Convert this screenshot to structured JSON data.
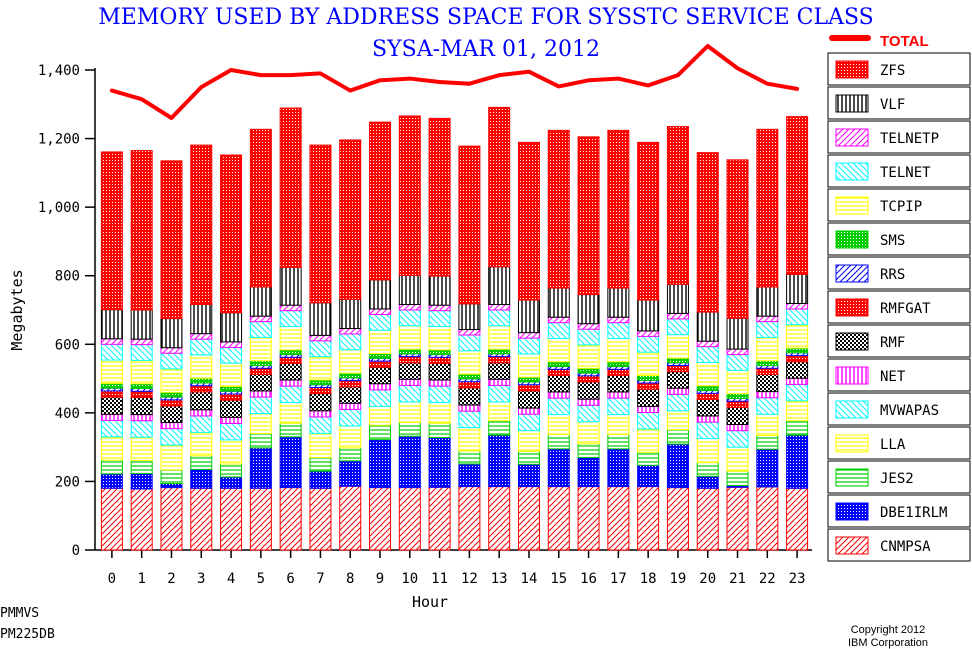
{
  "chart_data": {
    "type": "bar",
    "stacked": true,
    "title": "MEMORY USED BY ADDRESS SPACE FOR SYSSTC SERVICE CLASS",
    "subtitle": "SYSA-MAR 01, 2012",
    "xlabel": "Hour",
    "ylabel": "Megabytes",
    "ylim": [
      0,
      1400
    ],
    "yticks": [
      0,
      200,
      400,
      600,
      800,
      1000,
      1200,
      1400
    ],
    "ytick_labels": [
      "0",
      "200",
      "400",
      "600",
      "800",
      "1,000",
      "1,200",
      "1,400"
    ],
    "categories": [
      "0",
      "1",
      "2",
      "3",
      "4",
      "5",
      "6",
      "7",
      "8",
      "9",
      "10",
      "11",
      "12",
      "13",
      "14",
      "15",
      "16",
      "17",
      "18",
      "19",
      "20",
      "21",
      "22",
      "23"
    ],
    "legend_position": "right",
    "series": [
      {
        "name": "CNMPSA",
        "color": "#ff0000",
        "pattern": "diag-fwd",
        "values": [
          180,
          178,
          182,
          180,
          180,
          180,
          182,
          180,
          186,
          182,
          182,
          183,
          185,
          185,
          185,
          185,
          185,
          185,
          185,
          182,
          180,
          183,
          184,
          180
        ]
      },
      {
        "name": "DBE1IRLM",
        "color": "#0000ff",
        "pattern": "dots",
        "values": [
          42,
          45,
          12,
          55,
          33,
          118,
          148,
          50,
          74,
          140,
          150,
          145,
          66,
          150,
          65,
          110,
          85,
          110,
          62,
          127,
          35,
          5,
          110,
          155
        ]
      },
      {
        "name": "JES2",
        "color": "#00cc00",
        "pattern": "horiz",
        "values": [
          40,
          38,
          40,
          40,
          38,
          42,
          40,
          40,
          38,
          42,
          40,
          42,
          38,
          42,
          38,
          42,
          40,
          42,
          38,
          42,
          40,
          42,
          40,
          42
        ]
      },
      {
        "name": "LLA",
        "color": "#ffff00",
        "pattern": "horiz",
        "values": [
          68,
          68,
          72,
          68,
          70,
          58,
          60,
          70,
          64,
          55,
          60,
          60,
          68,
          55,
          60,
          58,
          64,
          58,
          68,
          55,
          70,
          70,
          62,
          58
        ]
      },
      {
        "name": "MVWAPAS",
        "color": "#00ffff",
        "pattern": "diag-back",
        "values": [
          48,
          48,
          48,
          48,
          48,
          48,
          48,
          48,
          48,
          48,
          48,
          48,
          48,
          48,
          48,
          48,
          48,
          48,
          48,
          48,
          48,
          48,
          48,
          48
        ]
      },
      {
        "name": "NET",
        "color": "#ff00ff",
        "pattern": "vert",
        "values": [
          18,
          18,
          18,
          18,
          18,
          18,
          18,
          18,
          18,
          18,
          18,
          18,
          18,
          18,
          18,
          18,
          18,
          18,
          18,
          18,
          18,
          18,
          18,
          18
        ]
      },
      {
        "name": "RMF",
        "color": "#000000",
        "pattern": "checker",
        "values": [
          50,
          50,
          48,
          52,
          50,
          48,
          48,
          50,
          48,
          48,
          48,
          48,
          50,
          48,
          50,
          48,
          50,
          48,
          50,
          48,
          48,
          50,
          50,
          48
        ]
      },
      {
        "name": "RMFGAT",
        "color": "#ff0000",
        "pattern": "dots",
        "values": [
          18,
          18,
          18,
          18,
          18,
          18,
          18,
          18,
          18,
          18,
          18,
          18,
          18,
          18,
          18,
          18,
          18,
          18,
          18,
          18,
          18,
          18,
          18,
          18
        ]
      },
      {
        "name": "RRS",
        "color": "#0000ff",
        "pattern": "diag-fwd",
        "values": [
          8,
          8,
          8,
          8,
          8,
          8,
          8,
          8,
          8,
          8,
          8,
          8,
          8,
          8,
          8,
          8,
          8,
          8,
          8,
          8,
          8,
          8,
          8,
          8
        ]
      },
      {
        "name": "SMS",
        "color": "#00cc00",
        "pattern": "dots",
        "values": [
          14,
          14,
          14,
          14,
          14,
          14,
          14,
          14,
          14,
          14,
          14,
          14,
          14,
          14,
          14,
          14,
          14,
          14,
          14,
          14,
          14,
          14,
          14,
          14
        ]
      },
      {
        "name": "TCPIP",
        "color": "#ffff00",
        "pattern": "horiz",
        "values": [
          68,
          68,
          68,
          68,
          68,
          68,
          68,
          68,
          68,
          68,
          68,
          68,
          68,
          68,
          68,
          68,
          68,
          68,
          68,
          68,
          68,
          68,
          68,
          68
        ]
      },
      {
        "name": "TELNET",
        "color": "#00ffff",
        "pattern": "diag-back",
        "values": [
          46,
          46,
          46,
          46,
          46,
          46,
          46,
          46,
          46,
          46,
          46,
          46,
          46,
          46,
          46,
          46,
          46,
          46,
          46,
          46,
          46,
          46,
          46,
          46
        ]
      },
      {
        "name": "TELNETP",
        "color": "#ff00ff",
        "pattern": "diag-fwd",
        "values": [
          16,
          16,
          16,
          16,
          16,
          16,
          16,
          16,
          16,
          16,
          16,
          16,
          16,
          16,
          16,
          16,
          16,
          16,
          16,
          16,
          16,
          16,
          16,
          16
        ]
      },
      {
        "name": "VLF",
        "color": "#000000",
        "pattern": "vert",
        "values": [
          85,
          85,
          85,
          85,
          85,
          85,
          110,
          95,
          85,
          85,
          85,
          85,
          75,
          110,
          95,
          85,
          85,
          85,
          90,
          85,
          85,
          90,
          85,
          85
        ]
      },
      {
        "name": "ZFS",
        "color": "#ff0000",
        "pattern": "dots",
        "values": [
          460,
          465,
          460,
          465,
          460,
          460,
          465,
          460,
          465,
          460,
          465,
          460,
          460,
          465,
          460,
          460,
          460,
          460,
          460,
          460,
          465,
          462,
          460,
          460
        ]
      }
    ],
    "total": {
      "name": "TOTAL",
      "color": "#ff0000",
      "values": [
        1340,
        1315,
        1260,
        1350,
        1400,
        1385,
        1385,
        1390,
        1340,
        1370,
        1375,
        1365,
        1360,
        1385,
        1395,
        1352,
        1370,
        1375,
        1355,
        1385,
        1470,
        1405,
        1360,
        1345
      ]
    }
  },
  "footer": {
    "line1": "PMMVS",
    "line2": "PM225DB"
  },
  "copyright": {
    "line1": "Copyright 2012",
    "line2": "IBM Corporation"
  }
}
